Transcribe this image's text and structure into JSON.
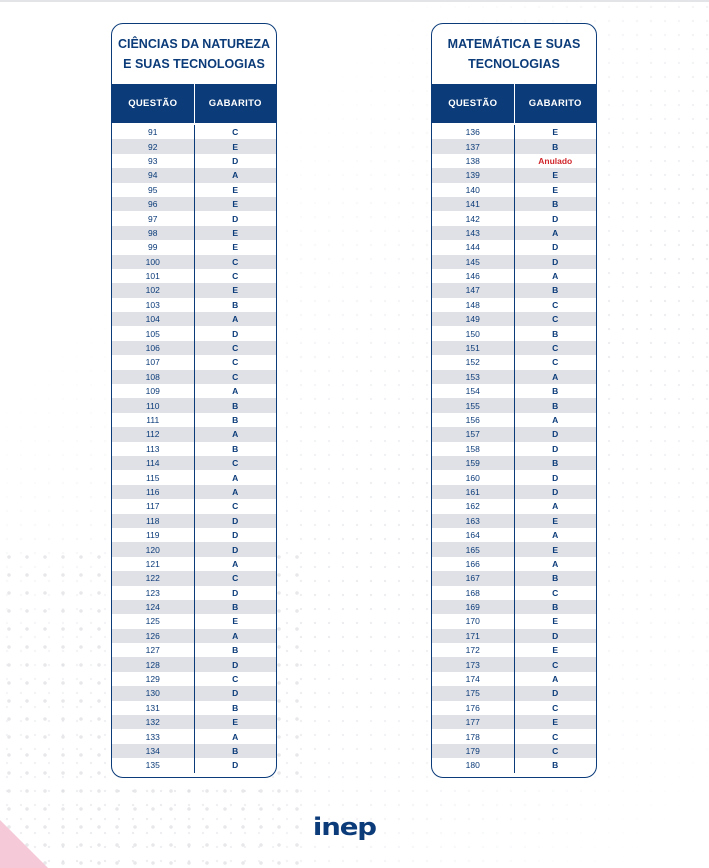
{
  "left_table": {
    "title": "CIÊNCIAS DA NATUREZA\nE SUAS TECNOLOGIAS",
    "col_question": "QUESTÃO",
    "col_answer": "GABARITO",
    "rows": [
      {
        "q": "91",
        "a": "C"
      },
      {
        "q": "92",
        "a": "E"
      },
      {
        "q": "93",
        "a": "D"
      },
      {
        "q": "94",
        "a": "A"
      },
      {
        "q": "95",
        "a": "E"
      },
      {
        "q": "96",
        "a": "E"
      },
      {
        "q": "97",
        "a": "D"
      },
      {
        "q": "98",
        "a": "E"
      },
      {
        "q": "99",
        "a": "E"
      },
      {
        "q": "100",
        "a": "C"
      },
      {
        "q": "101",
        "a": "C"
      },
      {
        "q": "102",
        "a": "E"
      },
      {
        "q": "103",
        "a": "B"
      },
      {
        "q": "104",
        "a": "A"
      },
      {
        "q": "105",
        "a": "D"
      },
      {
        "q": "106",
        "a": "C"
      },
      {
        "q": "107",
        "a": "C"
      },
      {
        "q": "108",
        "a": "C"
      },
      {
        "q": "109",
        "a": "A"
      },
      {
        "q": "110",
        "a": "B"
      },
      {
        "q": "111",
        "a": "B"
      },
      {
        "q": "112",
        "a": "A"
      },
      {
        "q": "113",
        "a": "B"
      },
      {
        "q": "114",
        "a": "C"
      },
      {
        "q": "115",
        "a": "A"
      },
      {
        "q": "116",
        "a": "A"
      },
      {
        "q": "117",
        "a": "C"
      },
      {
        "q": "118",
        "a": "D"
      },
      {
        "q": "119",
        "a": "D"
      },
      {
        "q": "120",
        "a": "D"
      },
      {
        "q": "121",
        "a": "A"
      },
      {
        "q": "122",
        "a": "C"
      },
      {
        "q": "123",
        "a": "D"
      },
      {
        "q": "124",
        "a": "B"
      },
      {
        "q": "125",
        "a": "E"
      },
      {
        "q": "126",
        "a": "A"
      },
      {
        "q": "127",
        "a": "B"
      },
      {
        "q": "128",
        "a": "D"
      },
      {
        "q": "129",
        "a": "C"
      },
      {
        "q": "130",
        "a": "D"
      },
      {
        "q": "131",
        "a": "B"
      },
      {
        "q": "132",
        "a": "E"
      },
      {
        "q": "133",
        "a": "A"
      },
      {
        "q": "134",
        "a": "B"
      },
      {
        "q": "135",
        "a": "D"
      }
    ]
  },
  "right_table": {
    "title": "MATEMÁTICA E SUAS\nTECNOLOGIAS",
    "col_question": "QUESTÃO",
    "col_answer": "GABARITO",
    "rows": [
      {
        "q": "136",
        "a": "E"
      },
      {
        "q": "137",
        "a": "B"
      },
      {
        "q": "138",
        "a": "Anulado",
        "annulled": true
      },
      {
        "q": "139",
        "a": "E"
      },
      {
        "q": "140",
        "a": "E"
      },
      {
        "q": "141",
        "a": "B"
      },
      {
        "q": "142",
        "a": "D"
      },
      {
        "q": "143",
        "a": "A"
      },
      {
        "q": "144",
        "a": "D"
      },
      {
        "q": "145",
        "a": "D"
      },
      {
        "q": "146",
        "a": "A"
      },
      {
        "q": "147",
        "a": "B"
      },
      {
        "q": "148",
        "a": "C"
      },
      {
        "q": "149",
        "a": "C"
      },
      {
        "q": "150",
        "a": "B"
      },
      {
        "q": "151",
        "a": "C"
      },
      {
        "q": "152",
        "a": "C"
      },
      {
        "q": "153",
        "a": "A"
      },
      {
        "q": "154",
        "a": "B"
      },
      {
        "q": "155",
        "a": "B"
      },
      {
        "q": "156",
        "a": "A"
      },
      {
        "q": "157",
        "a": "D"
      },
      {
        "q": "158",
        "a": "D"
      },
      {
        "q": "159",
        "a": "B"
      },
      {
        "q": "160",
        "a": "D"
      },
      {
        "q": "161",
        "a": "D"
      },
      {
        "q": "162",
        "a": "A"
      },
      {
        "q": "163",
        "a": "E"
      },
      {
        "q": "164",
        "a": "A"
      },
      {
        "q": "165",
        "a": "E"
      },
      {
        "q": "166",
        "a": "A"
      },
      {
        "q": "167",
        "a": "B"
      },
      {
        "q": "168",
        "a": "C"
      },
      {
        "q": "169",
        "a": "B"
      },
      {
        "q": "170",
        "a": "E"
      },
      {
        "q": "171",
        "a": "D"
      },
      {
        "q": "172",
        "a": "E"
      },
      {
        "q": "173",
        "a": "C"
      },
      {
        "q": "174",
        "a": "A"
      },
      {
        "q": "175",
        "a": "D"
      },
      {
        "q": "176",
        "a": "C"
      },
      {
        "q": "177",
        "a": "E"
      },
      {
        "q": "178",
        "a": "C"
      },
      {
        "q": "179",
        "a": "C"
      },
      {
        "q": "180",
        "a": "B"
      }
    ]
  },
  "logo": {
    "text": "inep"
  },
  "colors": {
    "primary": "#0b3b79",
    "stripe": "#dfe1e6",
    "annulled": "#d0262b",
    "accent_pink": "#f6c9d8"
  }
}
